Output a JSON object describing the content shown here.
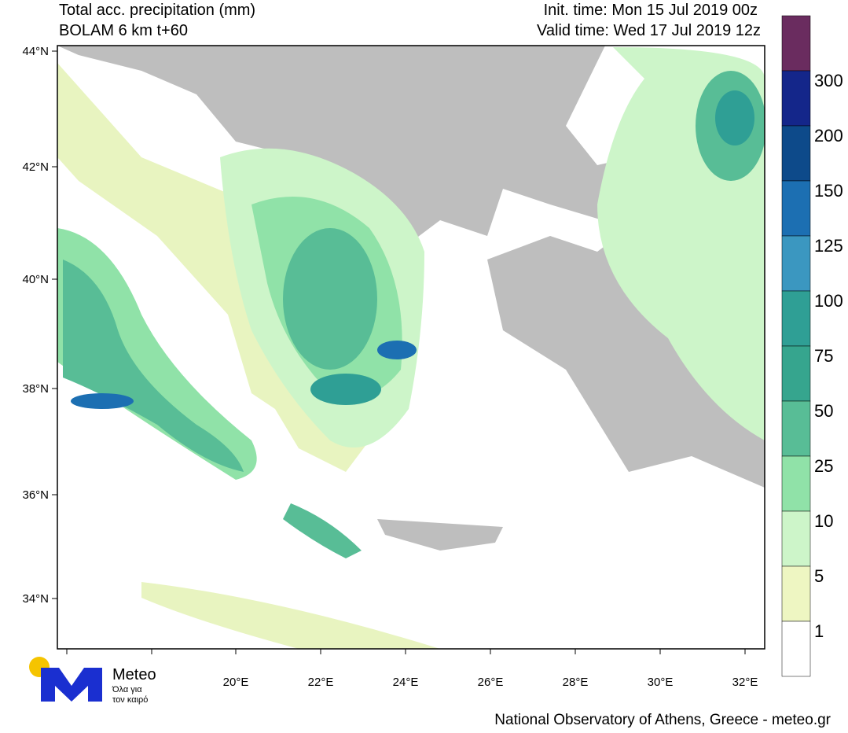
{
  "header": {
    "title": "Total acc. precipitation (mm)",
    "subtitle": "BOLAM 6 km t+60",
    "init_time": "Init. time: Mon 15 Jul 2019 00z",
    "valid_time": "Valid time: Wed 17 Jul 2019 12z"
  },
  "map": {
    "lat_labels": [
      "44°N",
      "42°N",
      "40°N",
      "38°N",
      "36°N",
      "34°N"
    ],
    "lon_labels": [
      "20°E",
      "22°E",
      "24°E",
      "26°E",
      "28°E",
      "30°E",
      "32°E"
    ]
  },
  "colorbar": {
    "labels": [
      "300",
      "200",
      "150",
      "125",
      "100",
      "75",
      "50",
      "25",
      "10",
      "5",
      "1"
    ],
    "colors": [
      "#6a2c5f",
      "#14268a",
      "#0d4a8a",
      "#1c6fb2",
      "#3b97c0",
      "#2f9f95",
      "#36a58e",
      "#58bd96",
      "#90e2a8",
      "#cdf5c9",
      "#eef6c2",
      "#ffffff"
    ]
  },
  "logo": {
    "name": "Meteo",
    "tagline_1": "Όλα για",
    "tagline_2": "τον καιρό"
  },
  "footer": {
    "credit": "National Observatory of Athens, Greece - meteo.gr"
  }
}
